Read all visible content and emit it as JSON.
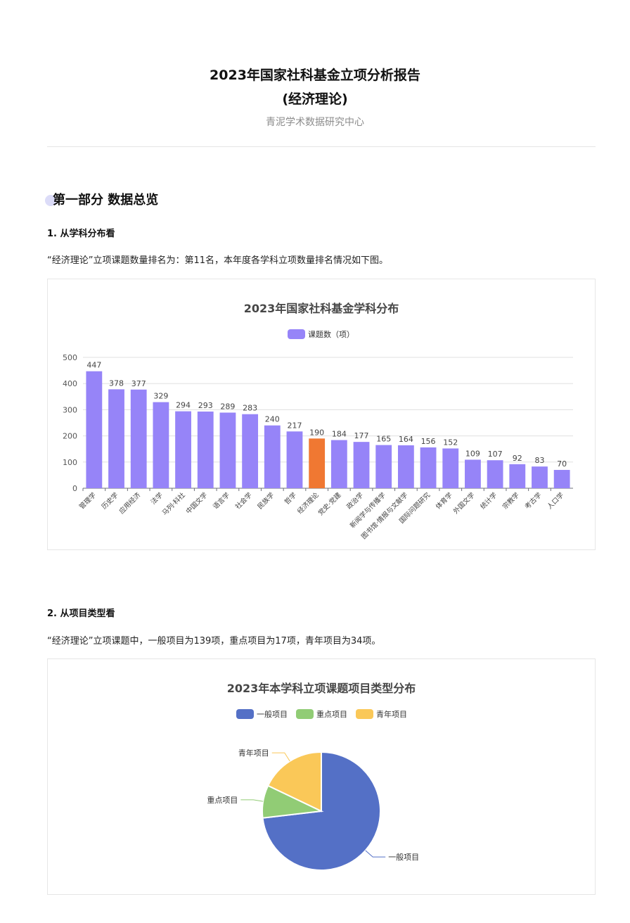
{
  "header": {
    "title": "2023年国家社科基金立项分析报告",
    "subtitle": "(经济理论)",
    "org": "青泥学术数据研究中心"
  },
  "part1": {
    "heading": "第一部分 数据总览",
    "sec1_heading": "1. 从学科分布看",
    "sec1_text": "“经济理论”立项课题数量排名为：第11名，本年度各学科立项数量排名情况如下图。",
    "sec2_heading": "2. 从项目类型看",
    "sec2_text": "“经济理论”立项课题中，一般项目为139项，重点项目为17项，青年项目为34项。"
  },
  "chart_data": [
    {
      "type": "bar",
      "title": "2023年国家社科基金学科分布",
      "legend": [
        "课题数（项）"
      ],
      "legend_position": "top-center",
      "categories": [
        "管理学",
        "历史学",
        "应用经济",
        "法学",
        "马列·科社",
        "中国文学",
        "语言学",
        "社会学",
        "民族学",
        "哲学",
        "经济理论",
        "党史·党建",
        "政治学",
        "新闻学与传播学",
        "图书馆·情报与文献学",
        "国际问题研究",
        "体育学",
        "外国文学",
        "统计学",
        "宗教学",
        "考古学",
        "人口学"
      ],
      "series": [
        {
          "name": "课题数（项）",
          "values": [
            447,
            378,
            377,
            329,
            294,
            293,
            289,
            283,
            240,
            217,
            190,
            184,
            177,
            165,
            164,
            156,
            152,
            109,
            107,
            92,
            83,
            70
          ]
        }
      ],
      "highlight_index": 10,
      "colors": {
        "bar": "#9684f8",
        "highlight": "#f07832"
      },
      "yticks": [
        0,
        100,
        200,
        300,
        400,
        500
      ],
      "ylim": [
        0,
        500
      ],
      "grid": true
    },
    {
      "type": "pie",
      "title": "2023年本学科立项课题项目类型分布",
      "legend_position": "top-center",
      "labels": [
        "一般项目",
        "重点项目",
        "青年项目"
      ],
      "values": [
        139,
        17,
        34
      ],
      "colors": [
        "#5470c6",
        "#91cc75",
        "#fac858"
      ]
    }
  ]
}
